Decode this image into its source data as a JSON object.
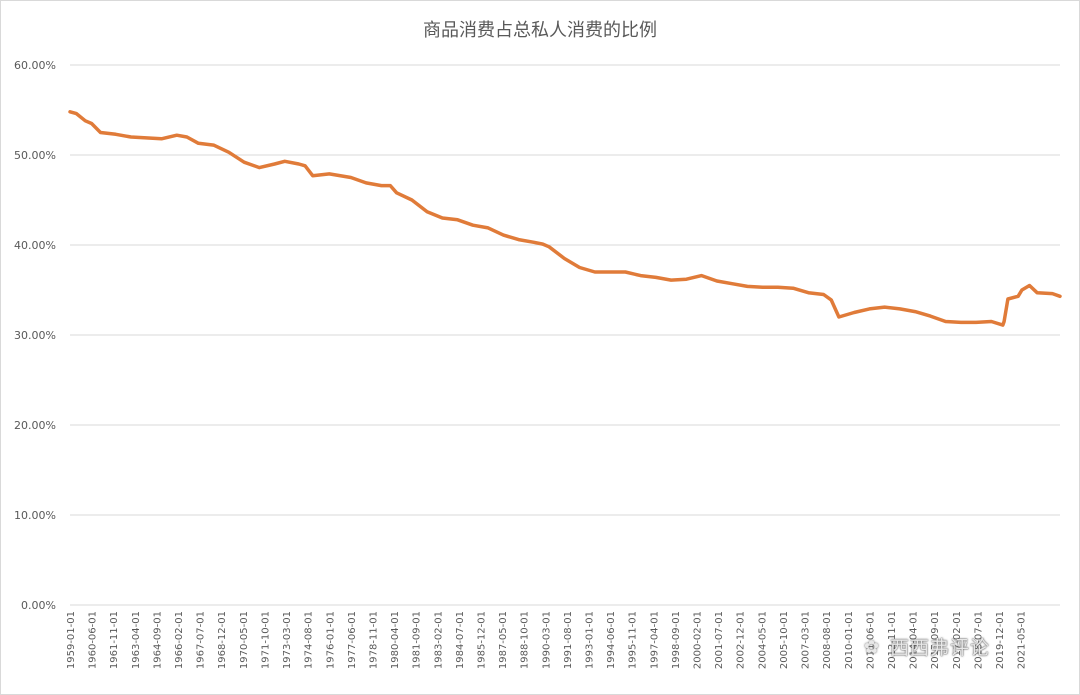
{
  "chart_data": {
    "type": "line",
    "title": "商品消费占总私人消费的比例",
    "xlabel": "",
    "ylabel": "",
    "ylim": [
      0,
      0.6
    ],
    "yticks": [
      0.0,
      0.1,
      0.2,
      0.3,
      0.4,
      0.5,
      0.6
    ],
    "ytick_labels": [
      "0.00%",
      "10.00%",
      "20.00%",
      "30.00%",
      "40.00%",
      "50.00%",
      "60.00%"
    ],
    "xlim": [
      "1959-01",
      "2023-12"
    ],
    "xtick_labels": [
      "1959-01-01",
      "1960-06-01",
      "1961-11-01",
      "1963-04-01",
      "1964-09-01",
      "1966-02-01",
      "1967-07-01",
      "1968-12-01",
      "1970-05-01",
      "1971-10-01",
      "1973-03-01",
      "1974-08-01",
      "1976-01-01",
      "1977-06-01",
      "1978-11-01",
      "1980-04-01",
      "1981-09-01",
      "1983-02-01",
      "1984-07-01",
      "1985-12-01",
      "1987-05-01",
      "1988-10-01",
      "1990-03-01",
      "1991-08-01",
      "1993-01-01",
      "1994-06-01",
      "1995-11-01",
      "1997-04-01",
      "1998-09-01",
      "2000-02-01",
      "2001-07-01",
      "2002-12-01",
      "2004-05-01",
      "2005-10-01",
      "2007-03-01",
      "2008-08-01",
      "2010-01-01",
      "2011-06-01",
      "2012-11-01",
      "2014-04-01",
      "2015-09-01",
      "2017-02-01",
      "2018-07-01",
      "2019-12-01",
      "2021-05-01"
    ],
    "grid": "horizontal",
    "color": "#E07B39",
    "series": [
      {
        "x": [
          "1959-01",
          "1959-06",
          "1960-01",
          "1960-06",
          "1961-01",
          "1962-01",
          "1963-01",
          "1964-01",
          "1965-01",
          "1966-01",
          "1966-09",
          "1967-06",
          "1968-06",
          "1969-06",
          "1970-06",
          "1971-06",
          "1972-06",
          "1973-02",
          "1974-01",
          "1974-06",
          "1974-12",
          "1976-01",
          "1977-06",
          "1978-06",
          "1979-06",
          "1980-01",
          "1980-06",
          "1981-06",
          "1982-06",
          "1983-06",
          "1984-06",
          "1985-06",
          "1986-06",
          "1987-06",
          "1988-06",
          "1989-06",
          "1990-01",
          "1990-06",
          "1991-06",
          "1992-06",
          "1993-06",
          "1994-06",
          "1995-06",
          "1996-06",
          "1997-06",
          "1998-06",
          "1999-06",
          "2000-06",
          "2001-06",
          "2002-06",
          "2003-06",
          "2004-06",
          "2005-06",
          "2006-06",
          "2007-06",
          "2008-06",
          "2008-12",
          "2009-06",
          "2010-06",
          "2011-06",
          "2012-06",
          "2013-06",
          "2014-06",
          "2015-06",
          "2016-06",
          "2017-06",
          "2018-06",
          "2019-06",
          "2020-03",
          "2020-04",
          "2020-07",
          "2021-03",
          "2021-06",
          "2021-12",
          "2022-06",
          "2023-06",
          "2023-12"
        ],
        "y": [
          0.548,
          0.546,
          0.538,
          0.535,
          0.525,
          0.523,
          0.52,
          0.519,
          0.518,
          0.522,
          0.52,
          0.513,
          0.511,
          0.503,
          0.492,
          0.486,
          0.49,
          0.493,
          0.49,
          0.488,
          0.477,
          0.479,
          0.475,
          0.469,
          0.466,
          0.466,
          0.458,
          0.45,
          0.437,
          0.43,
          0.428,
          0.422,
          0.419,
          0.411,
          0.406,
          0.403,
          0.401,
          0.398,
          0.385,
          0.375,
          0.37,
          0.37,
          0.37,
          0.366,
          0.364,
          0.361,
          0.362,
          0.366,
          0.36,
          0.357,
          0.354,
          0.353,
          0.353,
          0.352,
          0.347,
          0.345,
          0.339,
          0.32,
          0.325,
          0.329,
          0.331,
          0.329,
          0.326,
          0.321,
          0.315,
          0.314,
          0.314,
          0.315,
          0.311,
          0.315,
          0.34,
          0.343,
          0.35,
          0.355,
          0.347,
          0.346,
          0.343
        ]
      }
    ]
  },
  "watermark": {
    "text": "西西弗评论",
    "icon": "wechat-icon"
  }
}
